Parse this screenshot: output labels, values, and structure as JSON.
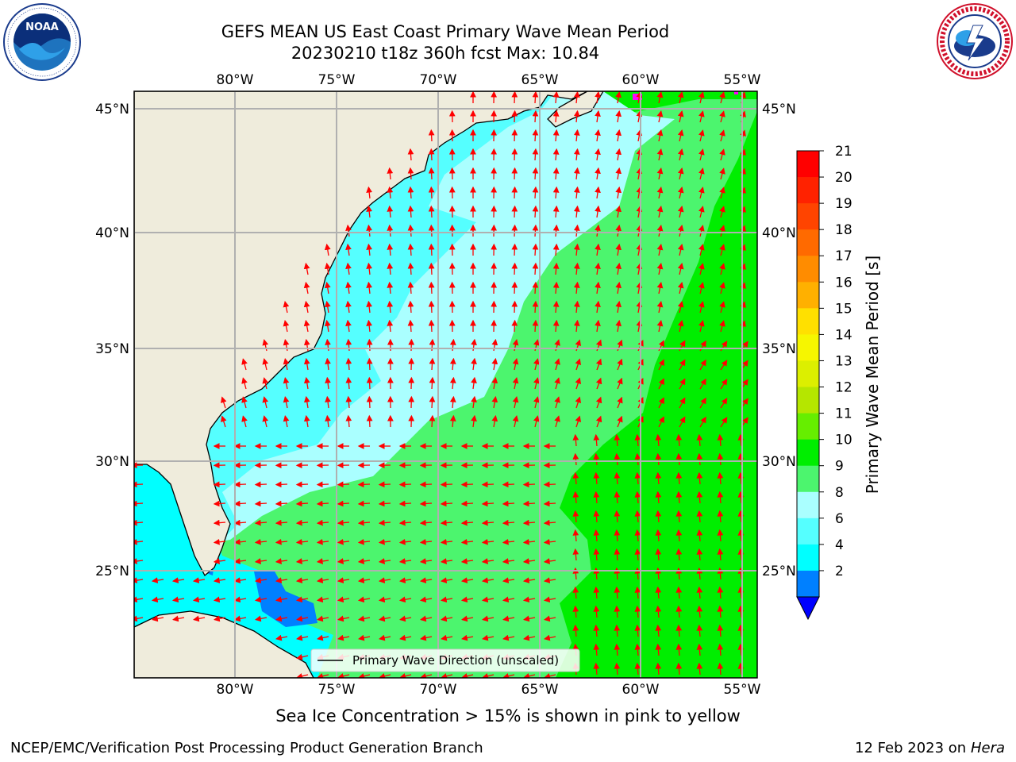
{
  "header": {
    "title_line1": "GEFS MEAN US East Coast Primary Wave Mean Period",
    "title_line2": "20230210 t18z 360h fcst   Max: 10.84"
  },
  "logos": {
    "left": {
      "name": "noaa-logo",
      "text": "NOAA",
      "ring_text": "NATIONAL OCEANIC AND ATMOSPHERIC ADMINISTRATION · U.S. DEPARTMENT OF COMMERCE"
    },
    "right": {
      "name": "nws-logo",
      "ring_text": "NATIONAL WEATHER SERVICE"
    }
  },
  "map": {
    "lon_labels_top": [
      "80°W",
      "75°W",
      "70°W",
      "65°W",
      "60°W",
      "55°W"
    ],
    "lon_labels_bottom": [
      "80°W",
      "75°W",
      "70°W",
      "65°W",
      "60°W",
      "55°W"
    ],
    "lat_labels_left": [
      "45°N",
      "40°N",
      "35°N",
      "30°N",
      "25°N"
    ],
    "lat_labels_right": [
      "45°N",
      "40°N",
      "35°N",
      "30°N",
      "25°N"
    ],
    "legend_entry": "Primary Wave Direction (unscaled)",
    "land_color": "#efecdc",
    "arrow_color": "#ff0000"
  },
  "colorbar": {
    "label": "Primary Wave Mean Period [s]",
    "ticks": [
      "21",
      "20",
      "19",
      "18",
      "17",
      "16",
      "15",
      "14",
      "13",
      "12",
      "11",
      "10",
      "9",
      "8",
      "6",
      "4",
      "2"
    ],
    "colors_top_to_bottom": [
      "#ff0000",
      "#ff2200",
      "#ff4400",
      "#ff6a00",
      "#ff8c00",
      "#ffb000",
      "#ffe000",
      "#f6f600",
      "#dcef00",
      "#b5e600",
      "#66ee00",
      "#00ee00",
      "#4cf56e",
      "#aaffff",
      "#55ffff",
      "#00ffff",
      "#0080ff"
    ],
    "extend_color": "#0000ff"
  },
  "notes": {
    "sea_ice": "Sea Ice Concentration > 15% is shown in pink to yellow",
    "credit": "NCEP/EMC/Verification Post Processing Product Generation Branch",
    "date": "12 Feb 2023 on",
    "machine": "Hera"
  }
}
